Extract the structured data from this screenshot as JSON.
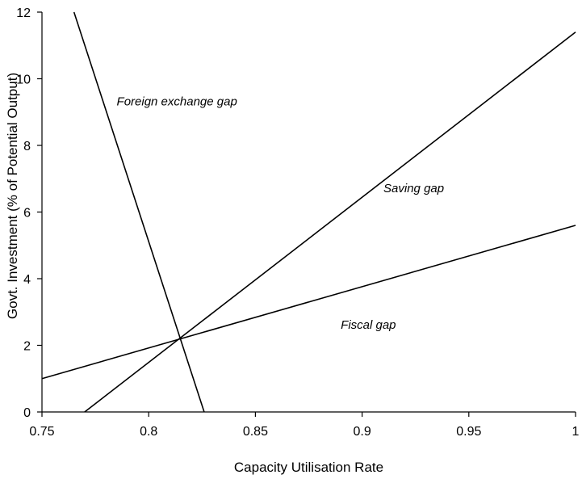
{
  "chart_data": {
    "type": "line",
    "xlabel": "Capacity Utilisation Rate",
    "ylabel": "Govt. Investment (% of Potential Output)",
    "xlim": [
      0.75,
      1.0
    ],
    "ylim": [
      0,
      12
    ],
    "x_ticks": [
      0.75,
      0.8,
      0.85,
      0.9,
      0.95,
      1.0
    ],
    "x_tick_labels": [
      "0.75",
      "0.8",
      "0.85",
      "0.9",
      "0.95",
      "1"
    ],
    "y_ticks": [
      0,
      2,
      4,
      6,
      8,
      10,
      12
    ],
    "y_tick_labels": [
      "0",
      "2",
      "4",
      "6",
      "8",
      "10",
      "12"
    ],
    "grid": false,
    "series": [
      {
        "x": [
          0.765,
          0.826
        ],
        "y": [
          12,
          0
        ]
      },
      {
        "x": [
          0.77,
          1.0
        ],
        "y": [
          0,
          11.4
        ]
      },
      {
        "x": [
          0.75,
          1.0
        ],
        "y": [
          1.0,
          5.6
        ]
      }
    ],
    "annotations": [
      {
        "text": "Foreign exchange gap",
        "x": 0.785,
        "y": 9.2
      },
      {
        "text": "Saving gap",
        "x": 0.91,
        "y": 6.6
      },
      {
        "text": "Fiscal gap",
        "x": 0.89,
        "y": 2.5
      }
    ]
  }
}
